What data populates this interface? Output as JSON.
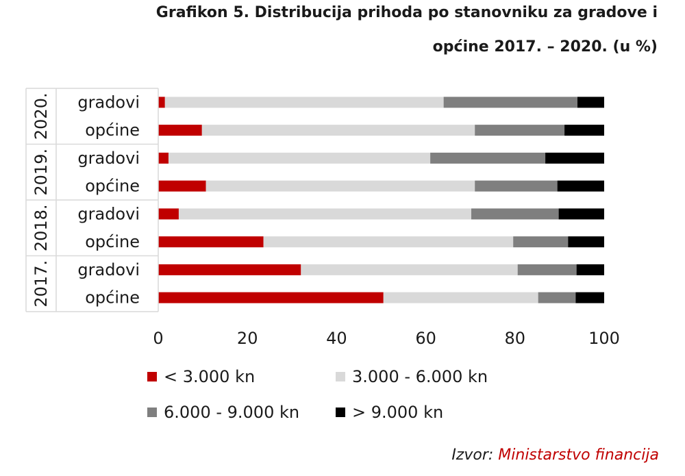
{
  "title_line1": "Grafikon 5. Distribucija prihoda po stanovniku za gradove i",
  "title_line2": "općine 2017. – 2020. (u %)",
  "source": {
    "prefix": "Izvor: ",
    "name": "Ministarstvo financija"
  },
  "colors": {
    "lt3000": "#c00000",
    "3000_6000": "#d9d9d9",
    "6000_9000": "#7f7f7f",
    "gt9000": "#000000"
  },
  "chart_data": {
    "type": "bar",
    "orientation": "horizontal",
    "stacked": true,
    "groups": [
      {
        "label": "2020.",
        "rows": [
          "gradovi",
          "općine"
        ]
      },
      {
        "label": "2019.",
        "rows": [
          "gradovi",
          "općine"
        ]
      },
      {
        "label": "2018.",
        "rows": [
          "gradovi",
          "općine"
        ]
      },
      {
        "label": "2017.",
        "rows": [
          "gradovi",
          "općine"
        ]
      }
    ],
    "categories": [
      "2020. gradovi",
      "2020. općine",
      "2019. gradovi",
      "2019. općine",
      "2018. gradovi",
      "2018. općine",
      "2017. gradovi",
      "2017. općine"
    ],
    "series": [
      {
        "name": "< 3.000 kn",
        "color": "#c00000",
        "values": [
          1.5,
          9.8,
          2.3,
          10.7,
          4.6,
          23.6,
          32.0,
          50.5
        ]
      },
      {
        "name": "3.000 - 6.000 kn",
        "color": "#d9d9d9",
        "values": [
          62.5,
          61.2,
          58.7,
          60.3,
          65.6,
          56.0,
          48.6,
          34.7
        ]
      },
      {
        "name": "6.000 - 9.000 kn",
        "color": "#7f7f7f",
        "values": [
          30.0,
          20.1,
          25.8,
          18.5,
          19.6,
          12.3,
          13.2,
          8.4
        ]
      },
      {
        "name": "> 9.000 kn",
        "color": "#000000",
        "values": [
          6.0,
          8.9,
          13.2,
          10.5,
          10.2,
          8.1,
          6.2,
          6.4
        ]
      }
    ],
    "xlim": [
      0,
      100
    ],
    "xticks": [
      "0",
      "20",
      "40",
      "60",
      "80",
      "100"
    ],
    "legend_position": "bottom"
  }
}
